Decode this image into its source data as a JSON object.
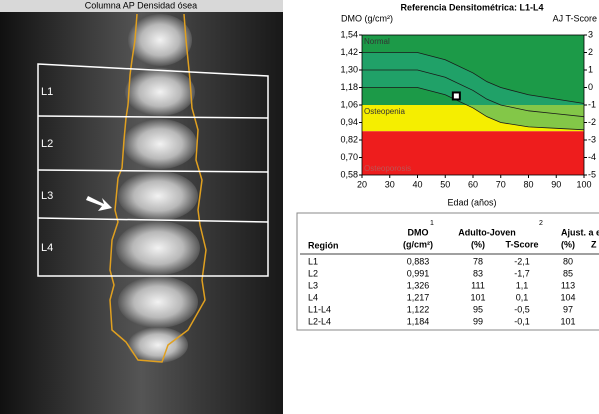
{
  "image": {
    "title": "Columna AP Densidad ósea",
    "labels": [
      "L1",
      "L2",
      "L3",
      "L4"
    ]
  },
  "chart_data": {
    "type": "line",
    "title": "Referencia Densitométrica: L1-L4",
    "y_label": "DMO (g/cm²)",
    "y2_label": "AJ T-Score",
    "x_label": "Edad (años)",
    "xlim": [
      20,
      100
    ],
    "xticks": [
      20,
      30,
      40,
      50,
      60,
      70,
      80,
      90,
      100
    ],
    "ylim": [
      0.58,
      1.54
    ],
    "yticks": [
      {
        "value": 0.58,
        "label": "0,58"
      },
      {
        "value": 0.7,
        "label": "0,70"
      },
      {
        "value": 0.82,
        "label": "0,82"
      },
      {
        "value": 0.94,
        "label": "0,94"
      },
      {
        "value": 1.06,
        "label": "1,06"
      },
      {
        "value": 1.18,
        "label": "1,18"
      },
      {
        "value": 1.3,
        "label": "1,30"
      },
      {
        "value": 1.42,
        "label": "1,42"
      },
      {
        "value": 1.54,
        "label": "1,54"
      }
    ],
    "y2lim": [
      -5,
      3
    ],
    "y2ticks": [
      3,
      2,
      1,
      0,
      -1,
      -2,
      -3,
      -4,
      -5
    ],
    "zones": [
      {
        "name": "Normal",
        "color": "#1c9a48",
        "from": -1,
        "to": 3
      },
      {
        "name": "Osteopenia",
        "color": "#f5ee00",
        "from": -2.5,
        "to": -1
      },
      {
        "name": "Osteoporosis",
        "color": "#ee1d1d",
        "from": -5,
        "to": -2.5
      }
    ],
    "x": [
      20,
      40,
      50,
      60,
      65,
      70,
      80,
      90,
      100
    ],
    "band_color": "#25a884",
    "series": [
      {
        "color": "#1a1a1a",
        "values": [
          1.42,
          1.42,
          1.37,
          1.28,
          1.22,
          1.18,
          1.13,
          1.1,
          1.07
        ]
      },
      {
        "color": "#1a1a1a",
        "values": [
          1.3,
          1.3,
          1.25,
          1.16,
          1.1,
          1.06,
          1.02,
          1.0,
          0.98
        ]
      },
      {
        "color": "#1a1a1a",
        "values": [
          1.18,
          1.18,
          1.13,
          1.04,
          0.98,
          0.94,
          0.91,
          0.9,
          0.89
        ]
      }
    ],
    "point": {
      "x": 54,
      "y": 1.122,
      "color": "#000000"
    }
  },
  "table": {
    "header": {
      "region": "Región",
      "dmo": "DMO",
      "dmo_note": "1",
      "dmo_unit": "(g/cm²)",
      "adult": "Adulto-Joven",
      "adult_note": "2",
      "adult_pct": "(%)",
      "adult_t": "T-Score",
      "age": "Ajust. a e",
      "age_pct": "(%)",
      "age_z": "Z"
    },
    "rows": [
      [
        "L1",
        "0,883",
        "78",
        "-2,1",
        "80"
      ],
      [
        "L2",
        "0,991",
        "83",
        "-1,7",
        "85"
      ],
      [
        "L3",
        "1,326",
        "111",
        "1,1",
        "113"
      ],
      [
        "L4",
        "1,217",
        "101",
        "0,1",
        "104"
      ],
      [
        "L1-L4",
        "1,122",
        "95",
        "-0,5",
        "97"
      ],
      [
        "L2-L4",
        "1,184",
        "99",
        "-0,1",
        "101"
      ]
    ]
  }
}
